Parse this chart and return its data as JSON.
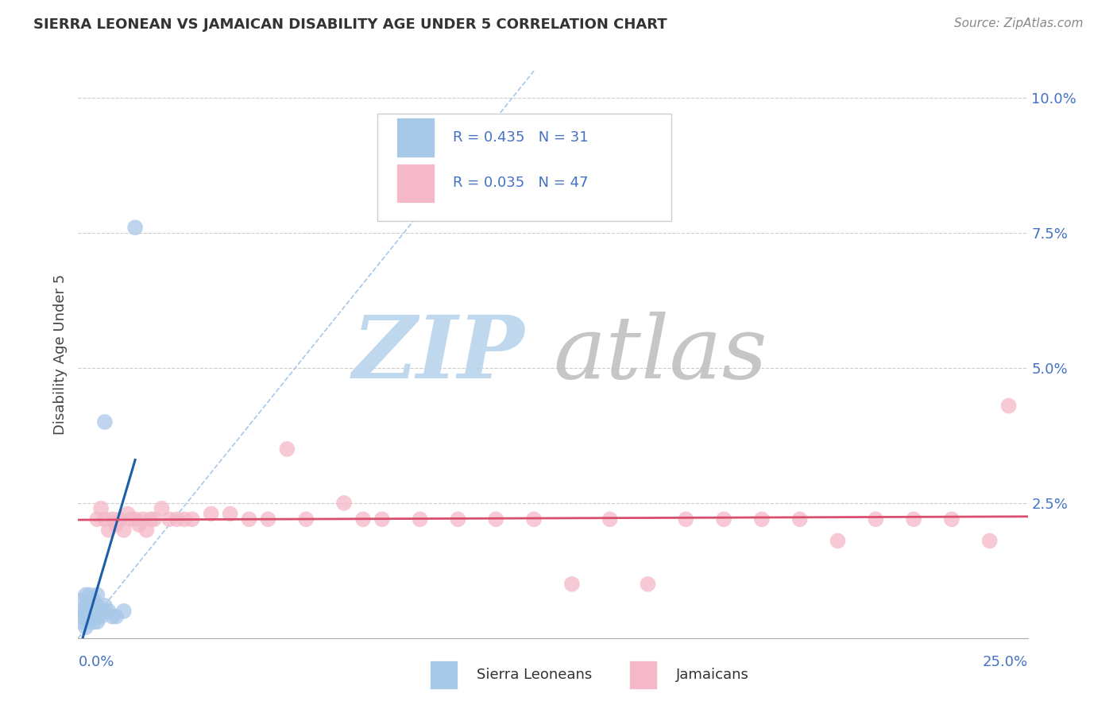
{
  "title": "SIERRA LEONEAN VS JAMAICAN DISABILITY AGE UNDER 5 CORRELATION CHART",
  "source": "Source: ZipAtlas.com",
  "ylabel": "Disability Age Under 5",
  "xlim": [
    0.0,
    0.25
  ],
  "ylim": [
    0.0,
    0.105
  ],
  "sierra_R": 0.435,
  "sierra_N": 31,
  "jamaican_R": 0.035,
  "jamaican_N": 47,
  "sierra_color": "#a8c8e8",
  "jamaican_color": "#f4b8c8",
  "sierra_trend_color": "#1a5fa8",
  "jamaican_trend_color": "#d94f6e",
  "diag_color": "#a8c8e8",
  "watermark_zip_color": "#c8dff0",
  "watermark_atlas_color": "#c8c8c8",
  "sierra_x": [
    0.001,
    0.001,
    0.001,
    0.001,
    0.002,
    0.002,
    0.002,
    0.002,
    0.002,
    0.003,
    0.003,
    0.003,
    0.003,
    0.003,
    0.004,
    0.004,
    0.004,
    0.004,
    0.005,
    0.005,
    0.005,
    0.005,
    0.006,
    0.006,
    0.007,
    0.007,
    0.008,
    0.009,
    0.01,
    0.012,
    0.015
  ],
  "sierra_y": [
    0.003,
    0.004,
    0.005,
    0.007,
    0.002,
    0.004,
    0.005,
    0.006,
    0.008,
    0.003,
    0.004,
    0.005,
    0.006,
    0.008,
    0.003,
    0.004,
    0.005,
    0.007,
    0.003,
    0.004,
    0.006,
    0.008,
    0.004,
    0.005,
    0.04,
    0.006,
    0.005,
    0.004,
    0.004,
    0.005,
    0.076
  ],
  "jamaican_x": [
    0.005,
    0.006,
    0.007,
    0.008,
    0.009,
    0.01,
    0.011,
    0.012,
    0.013,
    0.014,
    0.015,
    0.016,
    0.017,
    0.018,
    0.019,
    0.02,
    0.022,
    0.024,
    0.026,
    0.028,
    0.03,
    0.035,
    0.04,
    0.045,
    0.05,
    0.055,
    0.06,
    0.07,
    0.075,
    0.08,
    0.09,
    0.1,
    0.11,
    0.12,
    0.13,
    0.14,
    0.15,
    0.16,
    0.17,
    0.18,
    0.19,
    0.2,
    0.21,
    0.22,
    0.23,
    0.24,
    0.245
  ],
  "jamaican_y": [
    0.022,
    0.024,
    0.022,
    0.02,
    0.022,
    0.021,
    0.022,
    0.02,
    0.023,
    0.022,
    0.022,
    0.021,
    0.022,
    0.02,
    0.022,
    0.022,
    0.024,
    0.022,
    0.022,
    0.022,
    0.022,
    0.023,
    0.023,
    0.022,
    0.022,
    0.035,
    0.022,
    0.025,
    0.022,
    0.022,
    0.022,
    0.022,
    0.022,
    0.022,
    0.01,
    0.022,
    0.01,
    0.022,
    0.022,
    0.022,
    0.022,
    0.018,
    0.022,
    0.022,
    0.022,
    0.018,
    0.043
  ],
  "sierra_trend_x": [
    0.0,
    0.015
  ],
  "jamaican_trend_x": [
    0.0,
    0.25
  ],
  "yticks": [
    0.0,
    0.025,
    0.05,
    0.075,
    0.1
  ],
  "ytick_labels": [
    "",
    "2.5%",
    "5.0%",
    "7.5%",
    "10.0%"
  ]
}
